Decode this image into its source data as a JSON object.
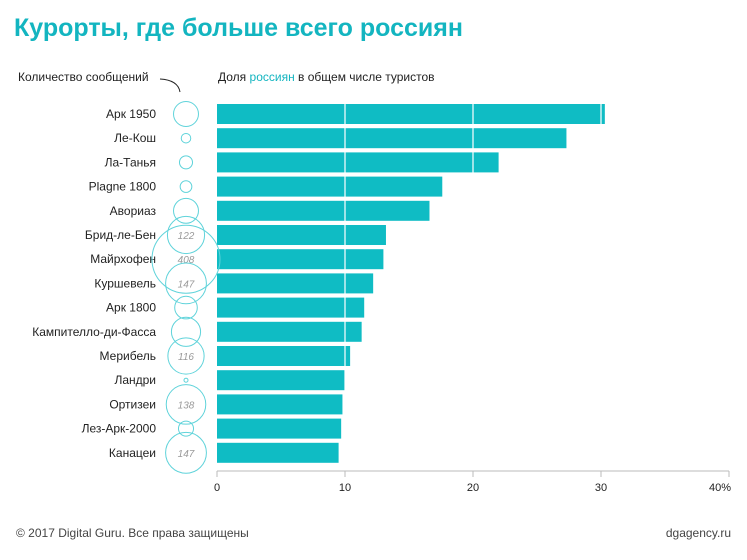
{
  "page": {
    "title": "Курорты, где больше всего россиян",
    "legend_bubbles_label": "Количество сообщений",
    "legend_bars_prefix": "Доля ",
    "legend_bars_accent": "россиян",
    "legend_bars_suffix": " в общем числе туристов",
    "footer_left": "© 2017 Digital Guru. Все права защищены",
    "footer_right": "dgagency.ru"
  },
  "colors": {
    "accent": "#13b5c0",
    "bar": "#0fbcc4",
    "bubble_stroke": "#5fd3da"
  },
  "chart_data": {
    "type": "bar",
    "orientation": "horizontal",
    "categories": [
      "Арк 1950",
      "Ле-Кош",
      "Ла-Танья",
      "Plagne 1800",
      "Авориаз",
      "Брид-ле-Бен",
      "Майрхофен",
      "Куршевель",
      "Арк 1800",
      "Кампителло-ди-Фасса",
      "Мерибель",
      "Ландри",
      "Ортизеи",
      "Лез-Арк-2000",
      "Канацеи"
    ],
    "values": [
      30.3,
      27.3,
      22.0,
      17.6,
      16.6,
      13.2,
      13.0,
      12.2,
      11.5,
      11.3,
      10.4,
      10.0,
      9.8,
      9.7,
      9.5
    ],
    "xlim": [
      0,
      40
    ],
    "xticks": [
      "0",
      "10",
      "20",
      "30",
      "40%"
    ],
    "grid": "vertical",
    "bubbles": {
      "label": "Количество сообщений",
      "values": [
        55,
        8,
        15,
        12,
        55,
        122,
        408,
        147,
        45,
        75,
        116,
        1,
        138,
        20,
        147
      ],
      "labels": [
        "",
        "",
        "",
        "",
        "",
        "122",
        "408",
        "147",
        "",
        "",
        "116",
        "",
        "138",
        "",
        "147"
      ]
    }
  }
}
